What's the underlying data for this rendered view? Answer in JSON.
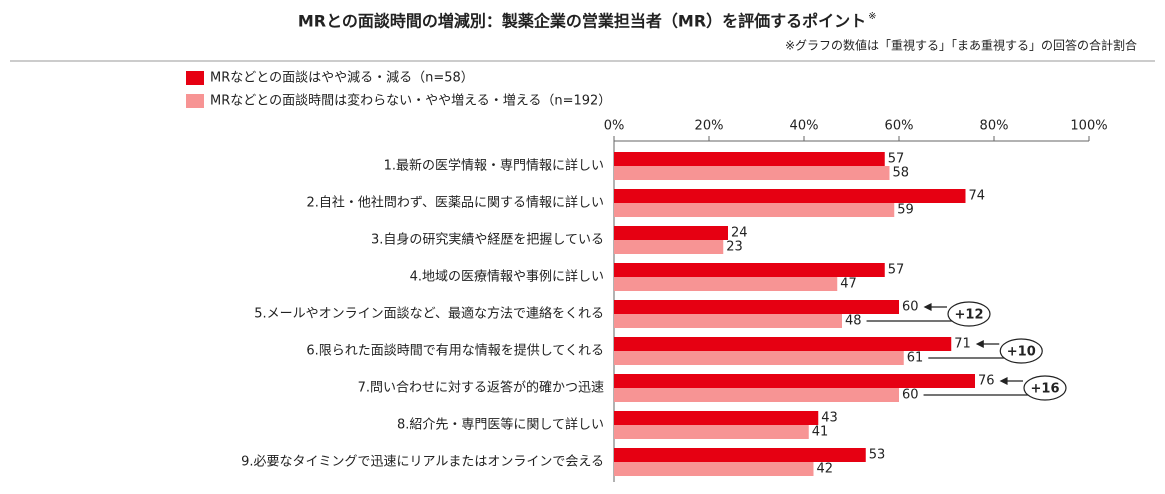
{
  "chart_data": {
    "type": "bar",
    "orientation": "horizontal",
    "title": "MRとの面談時間の増減別：製薬企業の営業担当者（MR）を評価するポイント",
    "title_mark": "※",
    "note": "※グラフの数値は「重視する」「まあ重視する」の回答の合計割合",
    "categories": [
      "1.最新の医学情報・専門情報に詳しい",
      "2.自社・他社問わず、医薬品に関する情報に詳しい",
      "3.自身の研究実績や経歴を把握している",
      "4.地域の医療情報や事例に詳しい",
      "5.メールやオンライン面談など、最適な方法で連絡をくれる",
      "6.限られた面談時間で有用な情報を提供してくれる",
      "7.問い合わせに対する返答が的確かつ迅速",
      "8.紹介先・専門医等に関して詳しい",
      "9.必要なタイミングで迅速にリアルまたはオンラインで会える"
    ],
    "series": [
      {
        "name": "MRなどとの面談はやや減る・減る（n=58）",
        "color": "#e60012",
        "values": [
          57,
          74,
          24,
          57,
          60,
          71,
          76,
          43,
          53
        ]
      },
      {
        "name": "MRなどとの面談時間は変わらない・やや増える・増える（n=192）",
        "color": "#f79494",
        "values": [
          58,
          59,
          23,
          47,
          48,
          61,
          60,
          41,
          42
        ]
      }
    ],
    "diff_labels": [
      null,
      null,
      null,
      null,
      "+12",
      "+10",
      "+16",
      null,
      null
    ],
    "xlim": [
      0,
      100
    ],
    "xticks": [
      {
        "value": 0,
        "label": "0%"
      },
      {
        "value": 20,
        "label": "20%"
      },
      {
        "value": 40,
        "label": "40%"
      },
      {
        "value": 60,
        "label": "60%"
      },
      {
        "value": 80,
        "label": "80%"
      },
      {
        "value": 100,
        "label": "100%"
      }
    ]
  }
}
